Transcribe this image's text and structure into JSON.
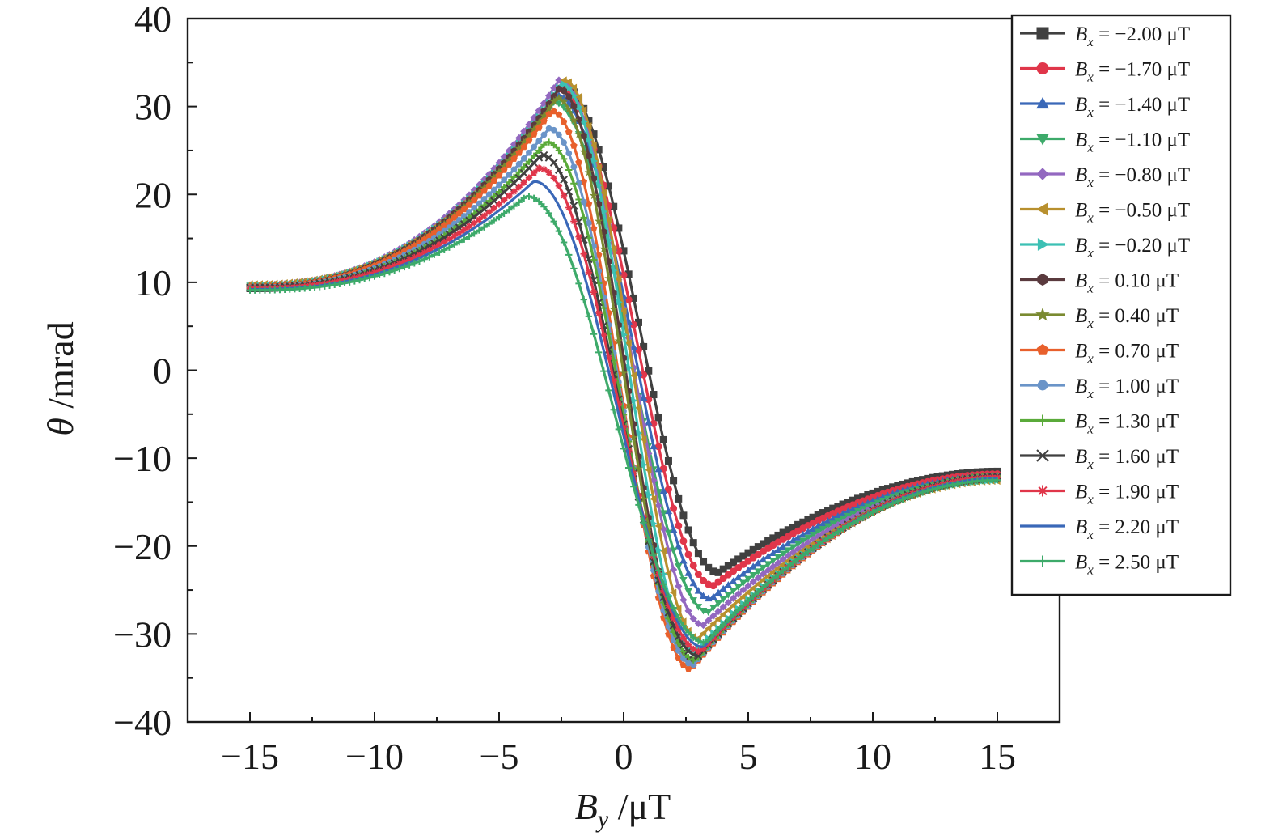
{
  "chart_data": {
    "type": "line",
    "title": "",
    "xlabel": {
      "symbol": "B",
      "subscript": "y",
      "unit": " /μT"
    },
    "ylabel": {
      "symbol": "θ",
      "unit": " /mrad"
    },
    "xlim": [
      -17.5,
      17.5
    ],
    "ylim": [
      -40,
      40
    ],
    "xticks": [
      -15,
      -10,
      -5,
      0,
      5,
      10,
      15
    ],
    "xtick_labels": [
      "−15",
      "−10",
      "−5",
      "0",
      "5",
      "10",
      "15"
    ],
    "yticks": [
      -40,
      -30,
      -20,
      -10,
      0,
      10,
      20,
      30,
      40
    ],
    "ytick_labels": [
      "−40",
      "−30",
      "−20",
      "−10",
      "0",
      "10",
      "20",
      "30",
      "40"
    ],
    "x_minor_step": 2.5,
    "y_minor_step": 5,
    "grid": false,
    "legend_position": "top-right",
    "x_range": [
      -15,
      15
    ],
    "series": [
      {
        "name": "Bx = −2.00 μT",
        "label_symbol": "B",
        "label_sub": "x",
        "label_value": "= −2.00 μT",
        "color": "#404040",
        "marker": "square",
        "y_start": 9.3,
        "peak": {
          "x": -2.5,
          "y": 32.5
        },
        "valley": {
          "x": 3.8,
          "y": -23.0
        },
        "y_end": -11.5
      },
      {
        "name": "Bx = −1.70 μT",
        "label_symbol": "B",
        "label_sub": "x",
        "label_value": "= −1.70 μT",
        "color": "#e0364a",
        "marker": "circle",
        "y_start": 9.4,
        "peak": {
          "x": -2.6,
          "y": 32.0
        },
        "valley": {
          "x": 3.6,
          "y": -24.5
        },
        "y_end": -11.8
      },
      {
        "name": "Bx = −1.40 μT",
        "label_symbol": "B",
        "label_sub": "x",
        "label_value": "= −1.40 μT",
        "color": "#3a68b8",
        "marker": "triangle-up",
        "y_start": 9.5,
        "peak": {
          "x": -2.7,
          "y": 31.3
        },
        "valley": {
          "x": 3.5,
          "y": -26.0
        },
        "y_end": -12.0
      },
      {
        "name": "Bx = −1.10 μT",
        "label_symbol": "B",
        "label_sub": "x",
        "label_value": "= −1.10 μT",
        "color": "#3daa6a",
        "marker": "triangle-down",
        "y_start": 9.6,
        "peak": {
          "x": -2.8,
          "y": 30.5
        },
        "valley": {
          "x": 3.4,
          "y": -27.5
        },
        "y_end": -12.2
      },
      {
        "name": "Bx = −0.80 μT",
        "label_symbol": "B",
        "label_sub": "x",
        "label_value": "= −0.80 μT",
        "color": "#9368c0",
        "marker": "diamond",
        "y_start": 9.7,
        "peak": {
          "x": -2.6,
          "y": 33.0
        },
        "valley": {
          "x": 3.2,
          "y": -29.0
        },
        "y_end": -12.4
      },
      {
        "name": "Bx = −0.50 μT",
        "label_symbol": "B",
        "label_sub": "x",
        "label_value": "= −0.50 μT",
        "color": "#b8902e",
        "marker": "triangle-left",
        "y_start": 9.8,
        "peak": {
          "x": -2.4,
          "y": 33.0
        },
        "valley": {
          "x": 3.0,
          "y": -30.5
        },
        "y_end": -12.6
      },
      {
        "name": "Bx = −0.20 μT",
        "label_symbol": "B",
        "label_sub": "x",
        "label_value": "= −0.20 μT",
        "color": "#3cc0b4",
        "marker": "triangle-right",
        "y_start": 9.6,
        "peak": {
          "x": -2.5,
          "y": 32.6
        },
        "valley": {
          "x": 2.9,
          "y": -32.0
        },
        "y_end": -12.5
      },
      {
        "name": "Bx = 0.10 μT",
        "label_symbol": "B",
        "label_sub": "x",
        "label_value": "= 0.10 μT",
        "color": "#5a3a3e",
        "marker": "hexagon",
        "y_start": 9.5,
        "peak": {
          "x": -2.6,
          "y": 32.0
        },
        "valley": {
          "x": 2.8,
          "y": -33.0
        },
        "y_end": -12.4
      },
      {
        "name": "Bx = 0.40 μT",
        "label_symbol": "B",
        "label_sub": "x",
        "label_value": "= 0.40 μT",
        "color": "#7a8a30",
        "marker": "star",
        "y_start": 9.4,
        "peak": {
          "x": -2.7,
          "y": 31.0
        },
        "valley": {
          "x": 2.8,
          "y": -33.5
        },
        "y_end": -12.3
      },
      {
        "name": "Bx = 0.70 μT",
        "label_symbol": "B",
        "label_sub": "x",
        "label_value": "= 0.70 μT",
        "color": "#e8602c",
        "marker": "pentagon",
        "y_start": 9.5,
        "peak": {
          "x": -2.9,
          "y": 29.5
        },
        "valley": {
          "x": 2.7,
          "y": -34.0
        },
        "y_end": -12.2
      },
      {
        "name": "Bx = 1.00 μT",
        "label_symbol": "B",
        "label_sub": "x",
        "label_value": "= 1.00 μT",
        "color": "#6a94c8",
        "marker": "circle-small",
        "y_start": 9.4,
        "peak": {
          "x": -3.0,
          "y": 27.5
        },
        "valley": {
          "x": 2.8,
          "y": -33.5
        },
        "y_end": -12.1
      },
      {
        "name": "Bx = 1.30 μT",
        "label_symbol": "B",
        "label_sub": "x",
        "label_value": "= 1.30 μT",
        "color": "#5aaa3a",
        "marker": "plus",
        "y_start": 9.3,
        "peak": {
          "x": -3.1,
          "y": 26.0
        },
        "valley": {
          "x": 2.9,
          "y": -33.0
        },
        "y_end": -12.0
      },
      {
        "name": "Bx = 1.60 μT",
        "label_symbol": "B",
        "label_sub": "x",
        "label_value": "= 1.60 μT",
        "color": "#404040",
        "marker": "x",
        "y_start": 9.4,
        "peak": {
          "x": -3.3,
          "y": 24.5
        },
        "valley": {
          "x": 3.0,
          "y": -32.5
        },
        "y_end": -12.1
      },
      {
        "name": "Bx = 1.90 μT",
        "label_symbol": "B",
        "label_sub": "x",
        "label_value": "= 1.90 μT",
        "color": "#e0364a",
        "marker": "asterisk",
        "y_start": 9.3,
        "peak": {
          "x": -3.4,
          "y": 23.0
        },
        "valley": {
          "x": 3.1,
          "y": -32.0
        },
        "y_end": -12.2
      },
      {
        "name": "Bx = 2.20 μT",
        "label_symbol": "B",
        "label_sub": "x",
        "label_value": "= 2.20 μT",
        "color": "#3a68b8",
        "marker": "line",
        "y_start": 9.2,
        "peak": {
          "x": -3.6,
          "y": 21.5
        },
        "valley": {
          "x": 3.2,
          "y": -31.5
        },
        "y_end": -12.3
      },
      {
        "name": "Bx = 2.50 μT",
        "label_symbol": "B",
        "label_sub": "x",
        "label_value": "= 2.50 μT",
        "color": "#3daa6a",
        "marker": "plus",
        "y_start": 9.1,
        "peak": {
          "x": -3.9,
          "y": 19.8
        },
        "valley": {
          "x": 3.3,
          "y": -31.0
        },
        "y_end": -12.5
      }
    ]
  }
}
